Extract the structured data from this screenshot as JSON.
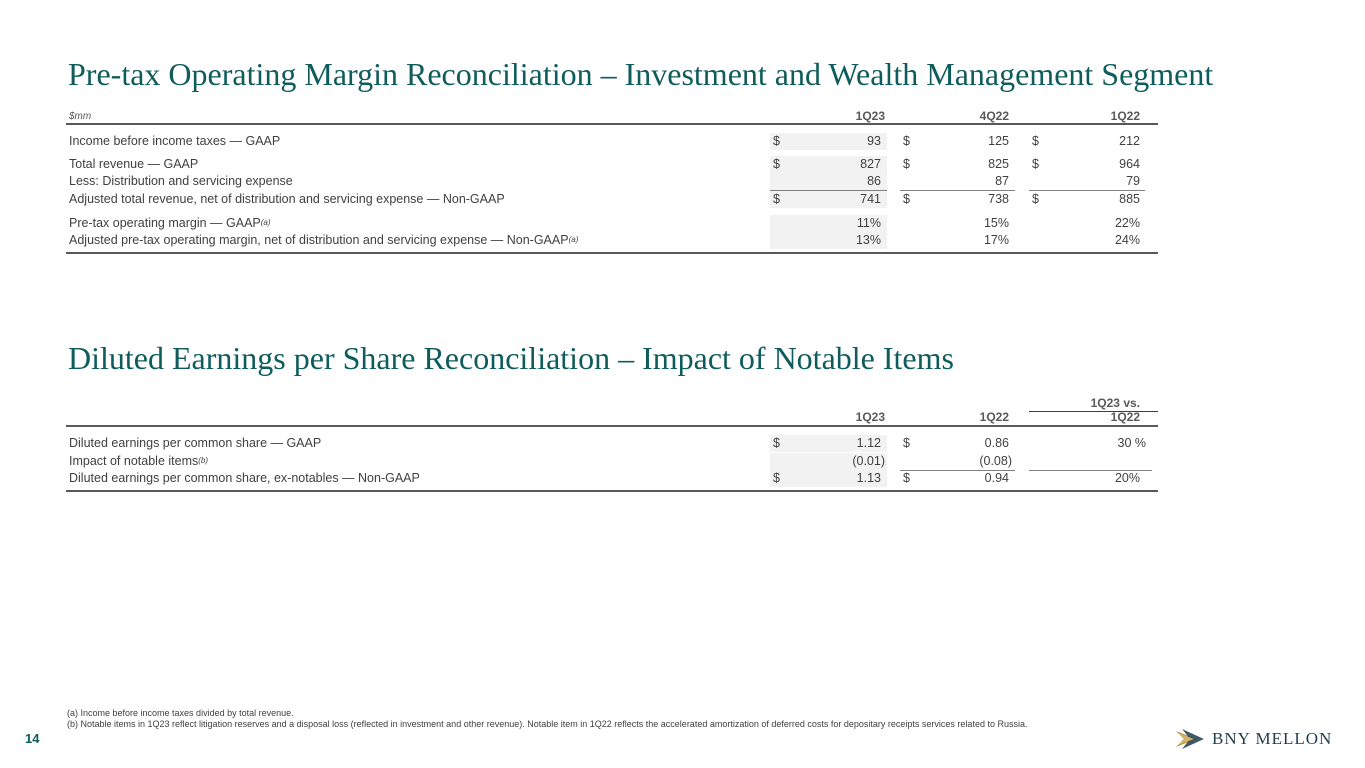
{
  "title1": "Pre-tax Operating Margin Reconciliation – Investment and Wealth Management Segment",
  "title2": "Diluted Earnings per Share Reconciliation – Impact of Notable Items",
  "table1": {
    "unit": "$mm",
    "headers": [
      "1Q23",
      "4Q22",
      "1Q22"
    ],
    "rows": [
      {
        "label": "Income before income taxes — GAAP",
        "sup": "",
        "d": [
          "$",
          "$",
          "$"
        ],
        "v": [
          "93",
          "125",
          "212"
        ]
      },
      {
        "label": "Total revenue — GAAP",
        "sup": "",
        "d": [
          "$",
          "$",
          "$"
        ],
        "v": [
          "827",
          "825",
          "964"
        ]
      },
      {
        "label": "Less: Distribution and servicing expense",
        "sup": "",
        "d": [
          "",
          "",
          ""
        ],
        "v": [
          "86",
          "87",
          "79"
        ]
      },
      {
        "label": "Adjusted total revenue, net of distribution and servicing expense — Non-GAAP",
        "sup": "",
        "d": [
          "$",
          "$",
          "$"
        ],
        "v": [
          "741",
          "738",
          "885"
        ]
      },
      {
        "label": "Pre-tax operating margin — GAAP",
        "sup": "(a)",
        "d": [
          "",
          "",
          ""
        ],
        "v": [
          "11%",
          "15%",
          "22%"
        ]
      },
      {
        "label": "Adjusted pre-tax operating margin, net of distribution and servicing expense — Non-GAAP",
        "sup": "(a)",
        "d": [
          "",
          "",
          ""
        ],
        "v": [
          "13%",
          "17%",
          "24%"
        ]
      }
    ]
  },
  "table2": {
    "group_header": "1Q23 vs.",
    "headers": [
      "1Q23",
      "1Q22",
      "1Q22"
    ],
    "rows": [
      {
        "label": "Diluted earnings per common share — GAAP",
        "sup": "",
        "d": [
          "$",
          "$"
        ],
        "v": [
          "1.12",
          "0.86",
          "30 %"
        ]
      },
      {
        "label": "Impact of notable items",
        "sup": "(b)",
        "d": [
          "",
          ""
        ],
        "v": [
          "(0.01)",
          "(0.08)",
          ""
        ]
      },
      {
        "label": "Diluted earnings per common share, ex-notables — Non-GAAP",
        "sup": "",
        "d": [
          "$",
          "$"
        ],
        "v": [
          "1.13",
          "0.94",
          "20%"
        ]
      }
    ]
  },
  "footnotes": [
    "(a) Income before income taxes divided by total revenue.",
    "(b) Notable items in 1Q23 reflect litigation reserves and a disposal loss (reflected in investment and other revenue). Notable item in 1Q22 reflects the accelerated amortization of deferred costs for depositary receipts services related to Russia."
  ],
  "page_number": "14",
  "logo": {
    "text": "BNY MELLON",
    "icon": "bny-mellon-logo-icon",
    "colors": {
      "gold": "#b8963e",
      "navy": "#1f3d4d"
    }
  },
  "colors": {
    "title": "#0f5c5c",
    "shade": "#f2f2f2",
    "text": "#404040"
  }
}
